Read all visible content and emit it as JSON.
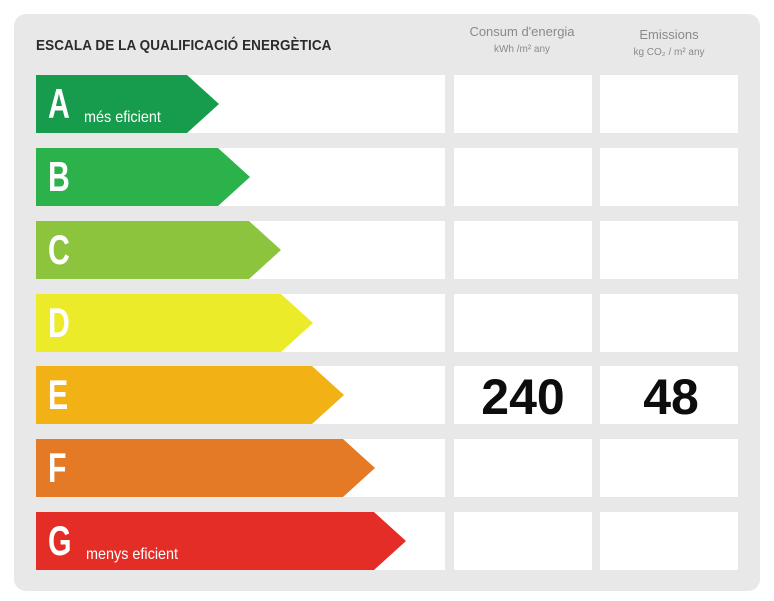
{
  "title": "ESCALA DE LA QUALIFICACIÓ ENERGÈTICA",
  "columns": {
    "energy": {
      "label": "Consum d'energia",
      "unit": "kWh /m² any"
    },
    "emissions": {
      "label": "Emissions",
      "unit": "kg CO₂ / m² any"
    }
  },
  "ratings": [
    {
      "letter": "A",
      "sublabel": "més eficient",
      "color": "#179b4c"
    },
    {
      "letter": "B",
      "sublabel": "",
      "color": "#2cb24a"
    },
    {
      "letter": "C",
      "sublabel": "",
      "color": "#8cc43d"
    },
    {
      "letter": "D",
      "sublabel": "",
      "color": "#eceb2a"
    },
    {
      "letter": "E",
      "sublabel": "",
      "color": "#f2b216"
    },
    {
      "letter": "F",
      "sublabel": "",
      "color": "#e47a26"
    },
    {
      "letter": "G",
      "sublabel": "menys eficient",
      "color": "#e52d27"
    }
  ],
  "selected": {
    "letter": "E",
    "energy": "240",
    "emissions": "48"
  }
}
